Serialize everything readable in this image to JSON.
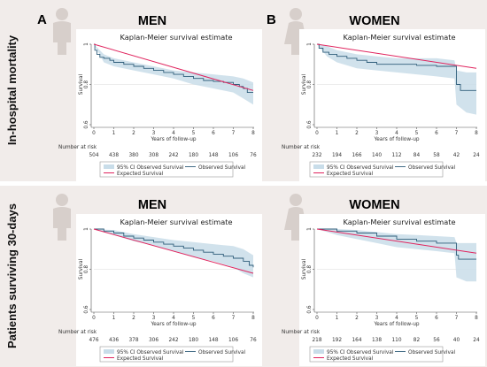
{
  "figure": {
    "row_labels": [
      "In-hospital mortality",
      "Patients surviving 30-days"
    ],
    "panel_letters": [
      "A",
      "B"
    ],
    "legend": {
      "ci_label": "95% CI Observed Survival",
      "observed_label": "Observed Survival",
      "expected_label": "Expected Survival"
    },
    "risk_label": "Number at risk"
  },
  "colors": {
    "background": "#f1ecea",
    "observed": "#2f5d7a",
    "expected": "#e0245e",
    "ci_fill": "#c9dde9",
    "reference_line": "#e6e6e6"
  },
  "chart_data": [
    {
      "type": "line",
      "header": "MEN",
      "title": "Kaplan-Meier survival estimate",
      "xlabel": "Years of follow-up",
      "ylabel": "Survival",
      "xlim": [
        0,
        8
      ],
      "ylim": [
        0.6,
        1.0
      ],
      "xticks": [
        0,
        1,
        2,
        3,
        4,
        5,
        6,
        7,
        8
      ],
      "yticks": [
        0.6,
        0.8,
        1
      ],
      "ytick_labels": [
        "0.6",
        "0.8",
        "1"
      ],
      "number_at_risk": [
        "504",
        "438",
        "380",
        "308",
        "242",
        "180",
        "148",
        "106",
        "76"
      ],
      "series": [
        {
          "name": "Observed Survival",
          "x": [
            0,
            0.05,
            0.15,
            0.3,
            0.5,
            0.8,
            1.0,
            1.5,
            2.0,
            2.5,
            3.0,
            3.5,
            4.0,
            4.5,
            5.0,
            5.5,
            6.0,
            6.5,
            7.0,
            7.3,
            7.5,
            7.7,
            7.85,
            8.0
          ],
          "y": [
            1.0,
            0.97,
            0.95,
            0.935,
            0.93,
            0.92,
            0.91,
            0.9,
            0.89,
            0.88,
            0.87,
            0.86,
            0.85,
            0.84,
            0.83,
            0.82,
            0.815,
            0.81,
            0.8,
            0.79,
            0.78,
            0.76,
            0.76,
            0.76
          ]
        },
        {
          "name": "Expected Survival",
          "x": [
            0,
            8
          ],
          "y": [
            1.0,
            0.77
          ]
        }
      ],
      "ci": {
        "x": [
          0,
          0.5,
          1.0,
          2.0,
          3.0,
          4.0,
          5.0,
          6.0,
          7.0,
          7.5,
          8.0
        ],
        "lower": [
          1.0,
          0.91,
          0.89,
          0.87,
          0.85,
          0.83,
          0.8,
          0.78,
          0.76,
          0.73,
          0.7
        ],
        "upper": [
          1.0,
          0.95,
          0.93,
          0.91,
          0.89,
          0.87,
          0.86,
          0.85,
          0.84,
          0.83,
          0.81
        ]
      }
    },
    {
      "type": "line",
      "header": "WOMEN",
      "title": "Kaplan-Meier survival estimate",
      "xlabel": "Years of follow-up",
      "ylabel": "Survival",
      "xlim": [
        0,
        8
      ],
      "ylim": [
        0.6,
        1.0
      ],
      "xticks": [
        0,
        1,
        2,
        3,
        4,
        5,
        6,
        7,
        8
      ],
      "yticks": [
        0.6,
        0.8,
        1
      ],
      "ytick_labels": [
        "0.6",
        "0.8",
        "1"
      ],
      "number_at_risk": [
        "232",
        "194",
        "166",
        "140",
        "112",
        "84",
        "58",
        "42",
        "24"
      ],
      "series": [
        {
          "name": "Observed Survival",
          "x": [
            0,
            0.1,
            0.3,
            0.6,
            1.0,
            1.5,
            2.0,
            2.5,
            3.0,
            4.0,
            5.0,
            6.0,
            6.9,
            7.0,
            7.2,
            8.0
          ],
          "y": [
            1.0,
            0.98,
            0.96,
            0.95,
            0.94,
            0.93,
            0.92,
            0.91,
            0.9,
            0.9,
            0.895,
            0.89,
            0.89,
            0.8,
            0.77,
            0.77
          ]
        },
        {
          "name": "Expected Survival",
          "x": [
            0,
            8
          ],
          "y": [
            1.0,
            0.88
          ]
        }
      ],
      "ci": {
        "x": [
          0,
          0.5,
          1.0,
          2.0,
          3.0,
          4.0,
          5.0,
          6.0,
          6.9,
          7.0,
          7.5,
          8.0
        ],
        "lower": [
          1.0,
          0.94,
          0.91,
          0.88,
          0.87,
          0.86,
          0.85,
          0.84,
          0.83,
          0.7,
          0.66,
          0.65
        ],
        "upper": [
          1.0,
          0.99,
          0.97,
          0.95,
          0.94,
          0.93,
          0.93,
          0.93,
          0.92,
          0.87,
          0.86,
          0.86
        ]
      }
    },
    {
      "type": "line",
      "header": "MEN",
      "title": "Kaplan-Meier survival estimate",
      "xlabel": "Years of follow-up",
      "ylabel": "Survival",
      "xlim": [
        0,
        8
      ],
      "ylim": [
        0.6,
        1.0
      ],
      "xticks": [
        0,
        1,
        2,
        3,
        4,
        5,
        6,
        7,
        8
      ],
      "yticks": [
        0.6,
        0.8,
        1
      ],
      "ytick_labels": [
        "0.6",
        "0.8",
        "1"
      ],
      "number_at_risk": [
        "476",
        "436",
        "378",
        "306",
        "242",
        "180",
        "148",
        "106",
        "76"
      ],
      "series": [
        {
          "name": "Observed Survival",
          "x": [
            0,
            0.5,
            1.0,
            1.5,
            2.0,
            2.5,
            3.0,
            3.5,
            4.0,
            4.5,
            5.0,
            5.5,
            6.0,
            6.5,
            7.0,
            7.5,
            7.8,
            8.0
          ],
          "y": [
            1.0,
            0.99,
            0.98,
            0.965,
            0.955,
            0.945,
            0.935,
            0.925,
            0.915,
            0.905,
            0.895,
            0.885,
            0.875,
            0.865,
            0.855,
            0.84,
            0.82,
            0.81
          ]
        },
        {
          "name": "Expected Survival",
          "x": [
            0,
            8
          ],
          "y": [
            1.0,
            0.78
          ]
        }
      ],
      "ci": {
        "x": [
          0,
          1.0,
          2.0,
          3.0,
          4.0,
          5.0,
          6.0,
          7.0,
          7.5,
          8.0
        ],
        "lower": [
          1.0,
          0.97,
          0.94,
          0.92,
          0.89,
          0.86,
          0.84,
          0.81,
          0.78,
          0.76
        ],
        "upper": [
          1.0,
          0.995,
          0.975,
          0.96,
          0.945,
          0.935,
          0.925,
          0.915,
          0.9,
          0.87
        ]
      }
    },
    {
      "type": "line",
      "header": "WOMEN",
      "title": "Kaplan-Meier survival estimate",
      "xlabel": "Years of follow-up",
      "ylabel": "Survival",
      "xlim": [
        0,
        8
      ],
      "ylim": [
        0.6,
        1.0
      ],
      "xticks": [
        0,
        1,
        2,
        3,
        4,
        5,
        6,
        7,
        8
      ],
      "yticks": [
        0.6,
        0.8,
        1
      ],
      "ytick_labels": [
        "0.6",
        "0.8",
        "1"
      ],
      "number_at_risk": [
        "218",
        "192",
        "164",
        "138",
        "110",
        "82",
        "56",
        "40",
        "24"
      ],
      "series": [
        {
          "name": "Observed Survival",
          "x": [
            0,
            1.0,
            2.0,
            3.0,
            4.0,
            5.0,
            6.0,
            6.9,
            7.0,
            7.1,
            8.0
          ],
          "y": [
            1.0,
            0.99,
            0.98,
            0.965,
            0.95,
            0.94,
            0.93,
            0.93,
            0.87,
            0.85,
            0.85
          ]
        },
        {
          "name": "Expected Survival",
          "x": [
            0,
            8
          ],
          "y": [
            1.0,
            0.88
          ]
        }
      ],
      "ci": {
        "x": [
          0,
          1.0,
          2.0,
          3.0,
          4.0,
          5.0,
          6.0,
          6.9,
          7.0,
          7.5,
          8.0
        ],
        "lower": [
          1.0,
          0.97,
          0.95,
          0.93,
          0.91,
          0.9,
          0.89,
          0.88,
          0.76,
          0.74,
          0.74
        ],
        "upper": [
          1.0,
          1.0,
          0.995,
          0.985,
          0.975,
          0.97,
          0.965,
          0.96,
          0.93,
          0.93,
          0.93
        ]
      }
    }
  ]
}
